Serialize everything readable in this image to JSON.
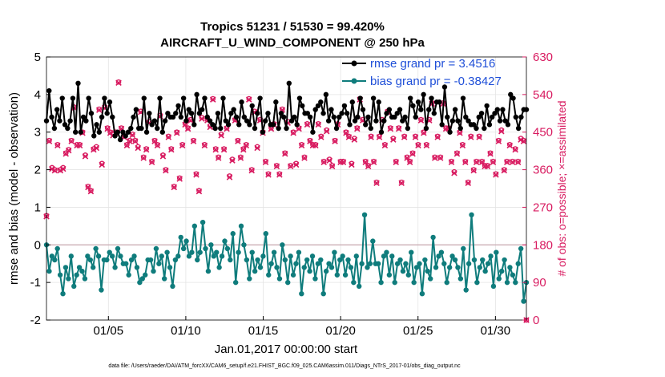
{
  "chart_data": {
    "type": "line",
    "title": "Tropics 51231 / 51530 = 99.420%",
    "subtitle": "AIRCRAFT_U_WIND_COMPONENT @ 250 hPa",
    "xlabel": "Jan.01,2017 00:00:00 start",
    "ylabel": "rmse and bias (model - observation)",
    "y2label": "# of obs: o=possible; ×=assimilated",
    "xlim": [
      1,
      32
    ],
    "ylim": [
      -2,
      5
    ],
    "y2lim": [
      0,
      630
    ],
    "x_ticks": [
      5,
      10,
      15,
      20,
      25,
      30
    ],
    "x_tick_labels": [
      "01/05",
      "01/10",
      "01/15",
      "01/20",
      "01/25",
      "01/30"
    ],
    "y_ticks": [
      -2,
      -1,
      0,
      1,
      2,
      3,
      4,
      5
    ],
    "y2_ticks": [
      0,
      90,
      180,
      270,
      360,
      450,
      540,
      630
    ],
    "grid": true,
    "footnote": "data file: /Users/raeder/DAI/ATM_forcXX/CAM6_setup/f.e21.FHIST_BGC.f09_025.CAM6assim.011/Diags_NTrS_2017-01/obs_diag_output.nc",
    "series": [
      {
        "name": "rmse",
        "legend": "rmse grand pr = 3.4516",
        "color": "#000000",
        "axis": "left",
        "values": [
          3.3,
          4.1,
          3.4,
          3.1,
          3.6,
          3.3,
          3.9,
          3.2,
          3.1,
          3.3,
          3.9,
          3.0,
          4.3,
          3.0,
          3.4,
          3.3,
          3.9,
          3.5,
          2.9,
          3.2,
          3.0,
          3.4,
          3.9,
          3.5,
          3.8,
          3.4,
          2.9,
          3.0,
          2.8,
          3.0,
          2.9,
          3.0,
          3.1,
          3.4,
          3.6,
          3.1,
          3.1,
          3.9,
          3.0,
          3.5,
          3.2,
          3.3,
          3.1,
          3.9,
          3.0,
          3.3,
          3.5,
          3.4,
          3.4,
          3.5,
          3.7,
          3.4,
          3.9,
          3.3,
          3.6,
          3.5,
          3.2,
          4.0,
          3.5,
          3.6,
          3.9,
          3.4,
          3.3,
          3.2,
          3.1,
          3.5,
          3.1,
          3.9,
          3.3,
          3.2,
          3.5,
          3.6,
          3.4,
          3.2,
          3.8,
          3.4,
          3.3,
          3.2,
          3.7,
          3.1,
          3.5,
          3.9,
          3.0,
          3.3,
          3.5,
          3.2,
          3.2,
          3.8,
          3.1,
          3.5,
          3.4,
          3.1,
          4.3,
          3.3,
          3.4,
          3.2,
          3.9,
          3.7,
          3.5,
          3.5,
          3.4,
          3.0,
          3.6,
          3.7,
          3.8,
          3.5,
          4.0,
          3.3,
          3.6,
          3.4,
          3.1,
          3.4,
          3.5,
          3.7,
          3.5,
          3.2,
          3.8,
          3.3,
          3.4,
          3.9,
          3.6,
          3.2,
          3.4,
          3.1,
          3.9,
          3.3,
          3.8,
          3.0,
          3.3,
          3.5,
          3.6,
          3.4,
          3.4,
          3.5,
          3.6,
          3.3,
          3.4,
          3.1,
          3.9,
          3.7,
          3.4,
          3.8,
          3.6,
          4.0,
          3.1,
          3.6,
          3.9,
          3.5,
          3.8,
          3.8,
          3.2,
          4.2,
          3.4,
          3.0,
          3.3,
          3.6,
          3.3,
          3.1,
          3.9,
          3.4,
          3.3,
          3.2,
          3.2,
          3.1,
          3.4,
          3.5,
          3.1,
          3.7,
          3.2,
          3.4,
          3.5,
          3.6,
          3.3,
          3.6,
          3.3,
          3.2,
          4.0,
          3.9,
          3.4,
          3.1,
          3.4,
          3.6,
          3.6
        ]
      },
      {
        "name": "bias",
        "legend": "bias grand pr = -0.38427",
        "color": "#0f7c7c",
        "axis": "left",
        "values": [
          0.0,
          -0.7,
          -0.3,
          -0.4,
          -0.1,
          -0.8,
          -1.3,
          -0.6,
          -0.9,
          -0.3,
          -1.1,
          -0.8,
          -0.6,
          -0.7,
          -0.9,
          -0.3,
          -0.4,
          -0.6,
          -0.1,
          -0.3,
          -1.2,
          -0.4,
          -0.4,
          -0.2,
          -0.3,
          -0.6,
          -0.1,
          -0.3,
          -0.5,
          -0.5,
          -0.8,
          -0.4,
          -0.3,
          -0.6,
          -1.0,
          -0.9,
          -0.8,
          -0.4,
          -0.4,
          -0.7,
          -0.1,
          -0.5,
          -0.3,
          -0.9,
          -0.2,
          -0.6,
          -1.1,
          -0.4,
          -0.3,
          0.2,
          -0.1,
          0.1,
          -0.3,
          -0.2,
          0.5,
          -0.4,
          -0.2,
          0.6,
          -0.1,
          -0.7,
          0.0,
          -0.3,
          -0.2,
          -0.6,
          -0.3,
          0.1,
          -0.1,
          -0.4,
          0.3,
          -1.0,
          -0.2,
          0.5,
          0.0,
          -0.4,
          -0.9,
          -0.2,
          -0.7,
          -0.4,
          -0.6,
          -0.3,
          0.3,
          -0.8,
          -0.5,
          -0.2,
          -0.6,
          -0.9,
          0.0,
          -0.4,
          -1.0,
          -0.3,
          -0.8,
          -0.5,
          -0.2,
          -1.3,
          -0.6,
          -0.4,
          -0.7,
          -0.3,
          -0.9,
          -0.5,
          -0.4,
          -1.3,
          -0.7,
          -0.5,
          -0.6,
          -0.2,
          -0.8,
          -0.4,
          -0.3,
          -0.8,
          -0.4,
          -0.6,
          -1.0,
          -0.3,
          -1.1,
          -0.5,
          0.8,
          -0.6,
          -0.5,
          0.1,
          -0.5,
          -0.5,
          -1.0,
          -0.3,
          -0.2,
          -0.8,
          -0.3,
          -1.0,
          -0.5,
          -0.4,
          -0.7,
          -0.5,
          -0.8,
          -0.2,
          -1.0,
          -0.6,
          -0.5,
          -1.3,
          -0.4,
          -0.7,
          -0.9,
          0.2,
          -0.6,
          -0.3,
          -0.2,
          -0.5,
          -1.0,
          -0.6,
          -0.3,
          -0.4,
          -0.6,
          -0.9,
          -0.1,
          -1.2,
          -0.5,
          0.8,
          -0.4,
          -1.0,
          -0.6,
          -0.4,
          -0.7,
          -0.5,
          -0.3,
          -1.1,
          -0.2,
          -0.9,
          -0.7,
          -0.4,
          -1.0,
          -0.6,
          -0.8,
          -1.0,
          -0.5,
          -0.1,
          -1.5,
          -1.0
        ]
      },
      {
        "name": "obs_possible",
        "legend": "",
        "color": "#d81b60",
        "axis": "right",
        "values": [
          250,
          430,
          365,
          360,
          420,
          360,
          365,
          400,
          408,
          430,
          510,
          420,
          420,
          450,
          395,
          320,
          310,
          410,
          415,
          505,
          375,
          510,
          460,
          450,
          445,
          450,
          570,
          460,
          440,
          420,
          430,
          445,
          430,
          415,
          500,
          390,
          410,
          475,
          380,
          430,
          420,
          490,
          395,
          360,
          440,
          410,
          320,
          450,
          340,
          420,
          470,
          460,
          480,
          430,
          350,
          310,
          485,
          420,
          480,
          465,
          530,
          410,
          390,
          445,
          410,
          460,
          345,
          385,
          480,
          430,
          390,
          410,
          420,
          530,
          360,
          500,
          415,
          480,
          450,
          380,
          350,
          460,
          470,
          370,
          350,
          505,
          400,
          475,
          370,
          450,
          375,
          460,
          420,
          390,
          470,
          430,
          420,
          420,
          470,
          440,
          380,
          455,
          385,
          370,
          430,
          470,
          380,
          380,
          450,
          440,
          375,
          435,
          460,
          530,
          480,
          380,
          370,
          440,
          380,
          330,
          440,
          480,
          420,
          500,
          460,
          435,
          380,
          460,
          330,
          440,
          390,
          380,
          400,
          440,
          420,
          480,
          450,
          420,
          480,
          520,
          390,
          440,
          390,
          520,
          460,
          460,
          380,
          355,
          400,
          450,
          420,
          380,
          330,
          440,
          360,
          380,
          440,
          380,
          370,
          370,
          400,
          380,
          350,
          430,
          455,
          360,
          380,
          420,
          380,
          410,
          380,
          435,
          430,
          0
        ]
      },
      {
        "name": "obs_assimilated",
        "legend": "",
        "color": "#d81b60",
        "axis": "right",
        "values": [
          248,
          428,
          362,
          358,
          418,
          358,
          362,
          398,
          406,
          428,
          508,
          418,
          418,
          448,
          392,
          318,
          308,
          408,
          412,
          503,
          372,
          508,
          458,
          448,
          442,
          448,
          568,
          458,
          438,
          418,
          428,
          443,
          428,
          412,
          498,
          388,
          408,
          472,
          378,
          428,
          418,
          488,
          392,
          358,
          438,
          408,
          318,
          448,
          338,
          418,
          468,
          458,
          478,
          428,
          348,
          308,
          482,
          418,
          478,
          462,
          528,
          408,
          388,
          442,
          408,
          458,
          342,
          382,
          478,
          428,
          388,
          408,
          418,
          528,
          358,
          498,
          412,
          478,
          448,
          378,
          348,
          458,
          468,
          368,
          348,
          503,
          398,
          472,
          368,
          448,
          372,
          458,
          418,
          388,
          468,
          428,
          418,
          418,
          468,
          438,
          378,
          452,
          382,
          368,
          428,
          468,
          378,
          378,
          448,
          438,
          372,
          432,
          458,
          528,
          478,
          378,
          368,
          438,
          378,
          328,
          438,
          478,
          418,
          498,
          458,
          432,
          378,
          458,
          328,
          438,
          388,
          378,
          398,
          438,
          418,
          478,
          448,
          418,
          478,
          518,
          388,
          438,
          388,
          518,
          458,
          458,
          378,
          352,
          398,
          448,
          418,
          378,
          328,
          438,
          358,
          378,
          438,
          378,
          368,
          368,
          398,
          378,
          348,
          428,
          452,
          358,
          378,
          418,
          378,
          408,
          378,
          432,
          428,
          0
        ]
      }
    ]
  }
}
